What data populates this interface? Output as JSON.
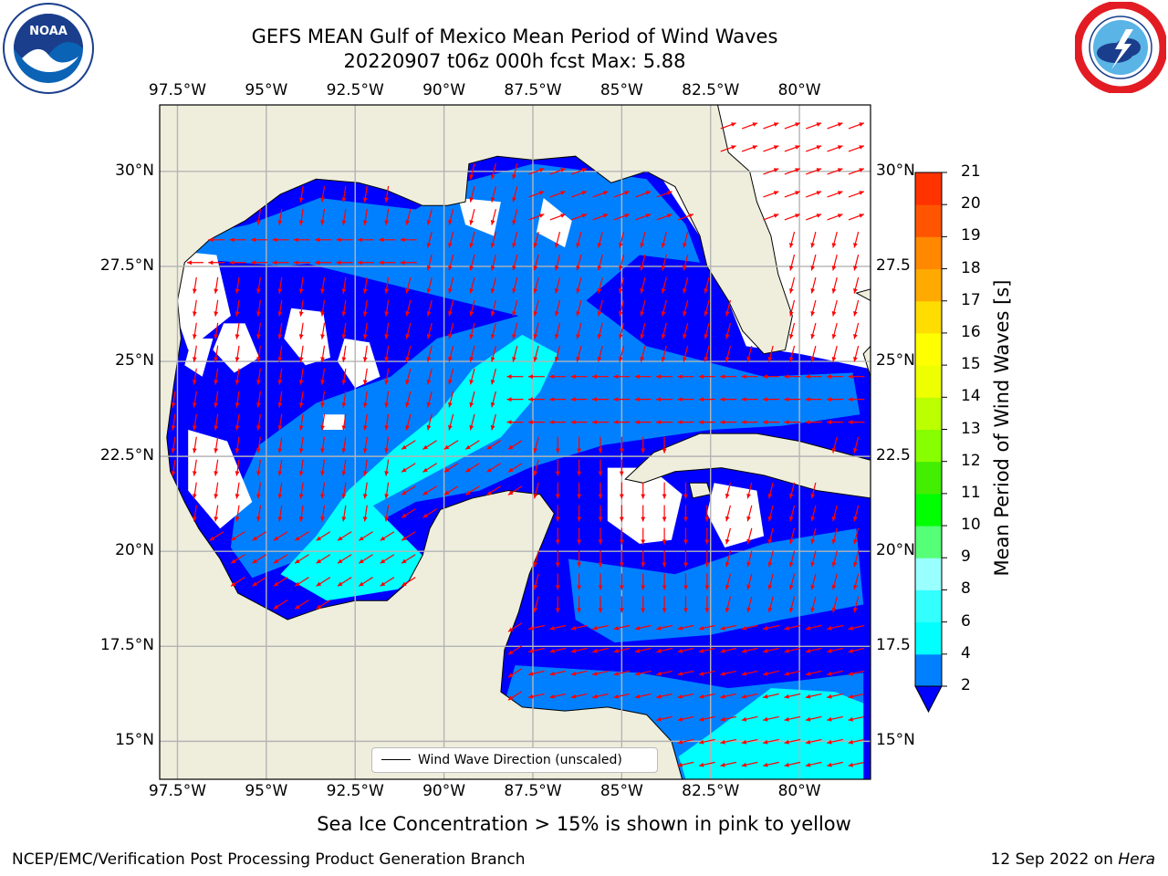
{
  "title": {
    "line1": "GEFS MEAN Gulf of Mexico Mean Period of Wind Waves",
    "line2": "20220907 t06z 000h fcst   Max: 5.88"
  },
  "map": {
    "lon_labels": [
      "97.5°W",
      "95°W",
      "92.5°W",
      "90°W",
      "87.5°W",
      "85°W",
      "82.5°W",
      "80°W"
    ],
    "lon_values": [
      -97.5,
      -95,
      -92.5,
      -90,
      -87.5,
      -85,
      -82.5,
      -80
    ],
    "lat_labels": [
      "30°N",
      "27.5°N",
      "25°N",
      "22.5°N",
      "20°N",
      "17.5°N",
      "15°N"
    ],
    "lat_values": [
      30,
      27.5,
      25,
      22.5,
      20,
      17.5,
      15
    ],
    "right_lat_labels": [
      "30°N",
      "27.5",
      "25°N",
      "22.5",
      "20°N",
      "17.5",
      "15°N"
    ],
    "extent": {
      "lon_min": -98,
      "lon_max": -78,
      "lat_min": 14,
      "lat_max": 31.75
    },
    "legend_label": "Wind Wave Direction (unscaled)",
    "colors": {
      "land": "#efeedd",
      "coast": "#000000",
      "grid": "#b4b4b4",
      "arrow": "#ff0000"
    }
  },
  "colorbar": {
    "label": "Mean Period of Wind Waves [s]",
    "tick_labels": [
      "2",
      "4",
      "6",
      "8",
      "9",
      "10",
      "11",
      "12",
      "13",
      "14",
      "15",
      "16",
      "17",
      "18",
      "19",
      "20",
      "21"
    ],
    "colors": [
      "#0000ff",
      "#0080ff",
      "#00ffff",
      "#33ffff",
      "#99ffff",
      "#55ff77",
      "#00ff00",
      "#44ee00",
      "#88ff00",
      "#bbff00",
      "#eeff00",
      "#ffff00",
      "#ffdd00",
      "#ffaa00",
      "#ff8800",
      "#ff5500",
      "#ff3300",
      "#ff0000"
    ]
  },
  "caption": "Sea Ice Concentration > 15% is shown in pink to yellow",
  "footer": {
    "left": "NCEP/EMC/Verification Post Processing Product Generation Branch",
    "right_prefix": "12 Sep 2022 on ",
    "right_host": "Hera"
  },
  "logos": {
    "noaa_text": "NOAA",
    "noaa_ring": "NATIONAL OCEANIC AND ATMOSPHERIC ADMINISTRATION · U.S. DEPARTMENT OF COMMERCE",
    "nws_ring": "NATIONAL WEATHER SERVICE"
  }
}
